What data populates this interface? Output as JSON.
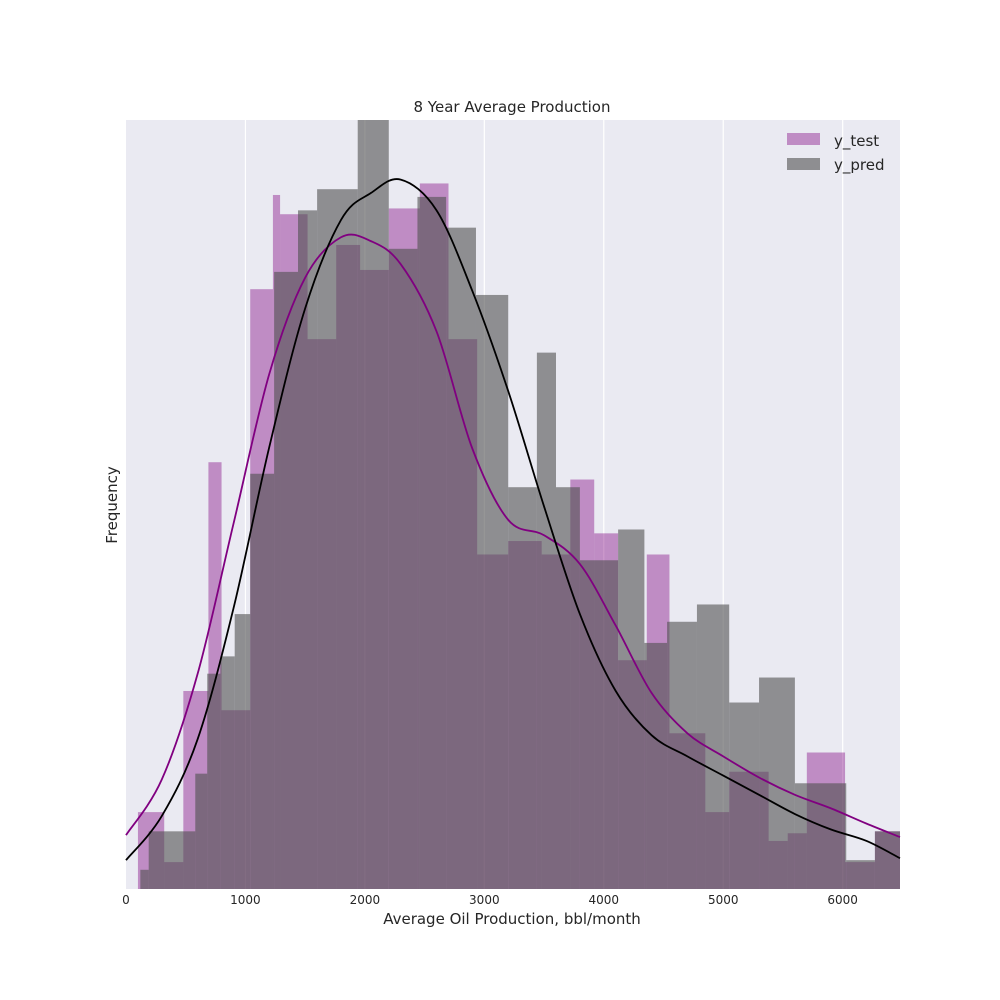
{
  "chart_data": {
    "type": "histogram",
    "title": "8 Year Average Production",
    "xlabel": "Average Oil Production, bbl/month",
    "ylabel": "Frequency",
    "xlim": [
      0,
      6480
    ],
    "ylim": [
      0,
      40
    ],
    "xticks": [
      0,
      1000,
      2000,
      3000,
      4000,
      5000,
      6000
    ],
    "xtick_labels": [
      "0",
      "1000",
      "2000",
      "3000",
      "4000",
      "5000",
      "6000"
    ],
    "grid": true,
    "legend_position": "top-right",
    "series": [
      {
        "name": "y_test",
        "color": "#800080",
        "bin_edges": [
          100,
          320,
          480,
          690,
          800,
          1040,
          1230,
          1290,
          1520,
          1760,
          1960,
          2200,
          2460,
          2700,
          2940,
          3200,
          3480,
          3720,
          3920,
          4120,
          4360,
          4550,
          4850,
          5050,
          5380,
          5540,
          5700,
          6020,
          6270,
          6480
        ],
        "counts": [
          4.0,
          1.4,
          10.3,
          22.2,
          9.3,
          31.2,
          36.1,
          35.1,
          28.6,
          33.5,
          32.2,
          35.4,
          36.7,
          28.6,
          17.4,
          18.1,
          17.4,
          21.3,
          18.5,
          11.9,
          17.4,
          8.1,
          4.0,
          6.1,
          2.5,
          2.9,
          7.1,
          1.4,
          3.0
        ],
        "kde": {
          "x": [
            0,
            300,
            600,
            900,
            1200,
            1500,
            1800,
            2050,
            2300,
            2600,
            2900,
            3200,
            3500,
            3800,
            4100,
            4400,
            4700,
            5000,
            5300,
            5600,
            5900,
            6200,
            6480
          ],
          "y": [
            2.8,
            5.7,
            11.2,
            19.0,
            26.8,
            31.8,
            33.9,
            33.7,
            32.5,
            29.0,
            22.9,
            19.2,
            18.4,
            16.9,
            13.7,
            10.2,
            8.1,
            6.9,
            5.8,
            4.9,
            4.2,
            3.4,
            2.7
          ]
        }
      },
      {
        "name": "y_pred",
        "color": "#505050",
        "bin_edges": [
          120,
          190,
          580,
          680,
          790,
          910,
          1040,
          1240,
          1440,
          1600,
          1940,
          2200,
          2440,
          2680,
          2930,
          3200,
          3440,
          3600,
          3800,
          4120,
          4340,
          4530,
          4780,
          5050,
          5300,
          5600,
          6030,
          6270,
          6480
        ],
        "counts": [
          1.0,
          3.0,
          6.0,
          11.2,
          12.1,
          14.3,
          21.6,
          32.1,
          35.3,
          36.4,
          40.0,
          33.3,
          36.0,
          34.4,
          30.9,
          20.9,
          27.9,
          20.9,
          17.1,
          18.7,
          12.8,
          13.9,
          14.8,
          9.7,
          11.0,
          5.5,
          1.5,
          3.0
        ],
        "kde": {
          "x": [
            0,
            300,
            600,
            900,
            1200,
            1500,
            1800,
            2050,
            2300,
            2600,
            2900,
            3200,
            3500,
            3800,
            4100,
            4400,
            4700,
            5000,
            5300,
            5600,
            5900,
            6200,
            6480
          ],
          "y": [
            1.5,
            3.8,
            7.8,
            14.6,
            23.0,
            30.2,
            34.8,
            36.2,
            36.9,
            35.3,
            31.1,
            25.9,
            19.9,
            14.3,
            10.3,
            8.0,
            6.9,
            5.9,
            4.9,
            3.9,
            3.1,
            2.5,
            1.6
          ]
        }
      }
    ]
  }
}
